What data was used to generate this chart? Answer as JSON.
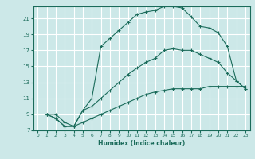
{
  "title": "",
  "xlabel": "Humidex (Indice chaleur)",
  "bg_color": "#cce8e8",
  "grid_color": "#ffffff",
  "line_color": "#1a6b5a",
  "xlim": [
    -0.5,
    23.5
  ],
  "ylim": [
    7,
    22.5
  ],
  "xticks": [
    0,
    1,
    2,
    3,
    4,
    5,
    6,
    7,
    8,
    9,
    10,
    11,
    12,
    13,
    14,
    15,
    16,
    17,
    18,
    19,
    20,
    21,
    22,
    23
  ],
  "yticks": [
    7,
    9,
    11,
    13,
    15,
    17,
    19,
    21
  ],
  "curve_upper": [
    [
      1,
      9
    ],
    [
      2,
      8.5
    ],
    [
      3,
      7.5
    ],
    [
      4,
      7.5
    ],
    [
      5,
      9.5
    ],
    [
      6,
      11
    ],
    [
      7,
      17.5
    ],
    [
      8,
      18.5
    ],
    [
      9,
      19.5
    ],
    [
      10,
      20.5
    ],
    [
      11,
      21.5
    ],
    [
      12,
      21.8
    ],
    [
      13,
      22.0
    ],
    [
      14,
      22.5
    ],
    [
      15,
      22.5
    ],
    [
      16,
      22.3
    ],
    [
      17,
      21.2
    ],
    [
      18,
      20.0
    ],
    [
      19,
      19.8
    ],
    [
      20,
      19.2
    ],
    [
      21,
      17.5
    ],
    [
      22,
      13.2
    ],
    [
      23,
      12.2
    ]
  ],
  "curve_middle": [
    [
      1,
      9
    ],
    [
      2,
      9
    ],
    [
      3,
      8
    ],
    [
      4,
      7.5
    ],
    [
      5,
      9.5
    ],
    [
      6,
      10
    ],
    [
      7,
      11
    ],
    [
      8,
      12
    ],
    [
      9,
      13
    ],
    [
      10,
      14
    ],
    [
      11,
      14.8
    ],
    [
      12,
      15.5
    ],
    [
      13,
      16
    ],
    [
      14,
      17
    ],
    [
      15,
      17.2
    ],
    [
      16,
      17
    ],
    [
      17,
      17
    ],
    [
      18,
      16.5
    ],
    [
      19,
      16
    ],
    [
      20,
      15.5
    ],
    [
      21,
      14.2
    ],
    [
      22,
      13.2
    ],
    [
      23,
      12.2
    ]
  ],
  "curve_lower": [
    [
      1,
      9
    ],
    [
      2,
      8.5
    ],
    [
      3,
      7.5
    ],
    [
      4,
      7.5
    ],
    [
      5,
      8
    ],
    [
      6,
      8.5
    ],
    [
      7,
      9
    ],
    [
      8,
      9.5
    ],
    [
      9,
      10
    ],
    [
      10,
      10.5
    ],
    [
      11,
      11
    ],
    [
      12,
      11.5
    ],
    [
      13,
      11.8
    ],
    [
      14,
      12
    ],
    [
      15,
      12.2
    ],
    [
      16,
      12.2
    ],
    [
      17,
      12.2
    ],
    [
      18,
      12.2
    ],
    [
      19,
      12.5
    ],
    [
      20,
      12.5
    ],
    [
      21,
      12.5
    ],
    [
      22,
      12.5
    ],
    [
      23,
      12.5
    ]
  ]
}
